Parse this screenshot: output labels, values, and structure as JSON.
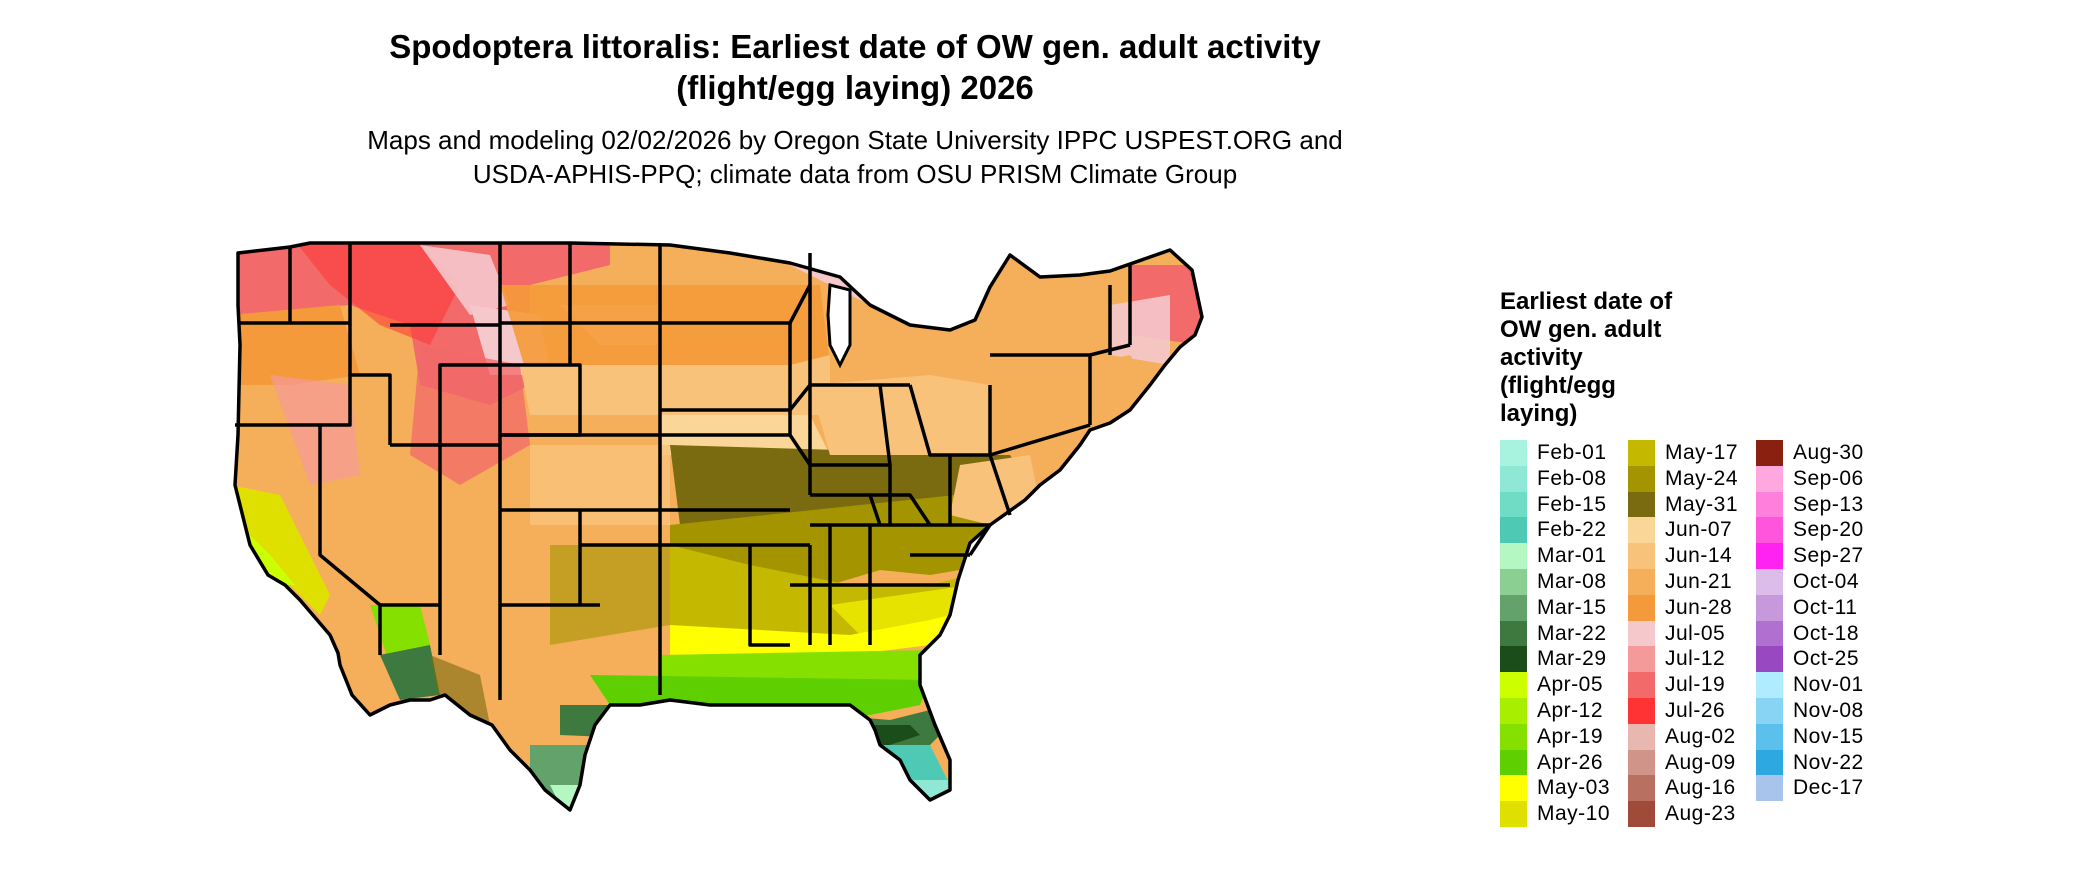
{
  "title_line1": "Spodoptera littoralis: Earliest date of OW gen. adult activity",
  "title_line2": "(flight/egg laying) 2026",
  "subtitle_line1": "Maps and modeling 02/02/2026 by Oregon State University IPPC USPEST.ORG and",
  "subtitle_line2": "USDA-APHIS-PPQ; climate data from OSU PRISM Climate Group",
  "legend": {
    "title": "Earliest date of OW gen. adult activity (flight/egg laying)",
    "items": [
      {
        "label": "Feb-01",
        "color": "#a8f2e0"
      },
      {
        "label": "Feb-08",
        "color": "#8fe8d6"
      },
      {
        "label": "Feb-15",
        "color": "#6fdcc6"
      },
      {
        "label": "Feb-22",
        "color": "#4ec9b4"
      },
      {
        "label": "Mar-01",
        "color": "#b5f7c3"
      },
      {
        "label": "Mar-08",
        "color": "#8ccf92"
      },
      {
        "label": "Mar-15",
        "color": "#63a36b"
      },
      {
        "label": "Mar-22",
        "color": "#3e7a3f"
      },
      {
        "label": "Mar-29",
        "color": "#1a4d1a"
      },
      {
        "label": "Apr-05",
        "color": "#ccff00"
      },
      {
        "label": "Apr-12",
        "color": "#a8ee00"
      },
      {
        "label": "Apr-19",
        "color": "#85e000"
      },
      {
        "label": "Apr-26",
        "color": "#5ecf00"
      },
      {
        "label": "May-03",
        "color": "#ffff00"
      },
      {
        "label": "May-10",
        "color": "#e0e000"
      },
      {
        "label": "May-17",
        "color": "#c4b800"
      },
      {
        "label": "May-24",
        "color": "#a39400"
      },
      {
        "label": "May-31",
        "color": "#7a6a10"
      },
      {
        "label": "Jun-07",
        "color": "#fad699"
      },
      {
        "label": "Jun-14",
        "color": "#f8c27a"
      },
      {
        "label": "Jun-21",
        "color": "#f5ae5a"
      },
      {
        "label": "Jun-28",
        "color": "#f59a3a"
      },
      {
        "label": "Jul-05",
        "color": "#f5c8cc"
      },
      {
        "label": "Jul-12",
        "color": "#f59a9a"
      },
      {
        "label": "Jul-19",
        "color": "#f26a6a"
      },
      {
        "label": "Jul-26",
        "color": "#ff3333"
      },
      {
        "label": "Aug-02",
        "color": "#e8b8b0"
      },
      {
        "label": "Aug-09",
        "color": "#d09488"
      },
      {
        "label": "Aug-16",
        "color": "#b87060"
      },
      {
        "label": "Aug-23",
        "color": "#a04a3a"
      },
      {
        "label": "Aug-30",
        "color": "#8a2010"
      },
      {
        "label": "Sep-06",
        "color": "#ffa8e0"
      },
      {
        "label": "Sep-13",
        "color": "#ff80dc"
      },
      {
        "label": "Sep-20",
        "color": "#ff55dd"
      },
      {
        "label": "Sep-27",
        "color": "#ff22f0"
      },
      {
        "label": "Oct-04",
        "color": "#dcbce8"
      },
      {
        "label": "Oct-11",
        "color": "#c898dc"
      },
      {
        "label": "Oct-18",
        "color": "#b070d0"
      },
      {
        "label": "Oct-25",
        "color": "#9848c0"
      },
      {
        "label": "Nov-01",
        "color": "#b0ecff"
      },
      {
        "label": "Nov-08",
        "color": "#88d4f4"
      },
      {
        "label": "Nov-15",
        "color": "#5cc0ec"
      },
      {
        "label": "Nov-22",
        "color": "#2ea8e0"
      },
      {
        "label": "Dec-17",
        "color": "#a8c4ec"
      }
    ]
  },
  "state_border_color": "#000000"
}
